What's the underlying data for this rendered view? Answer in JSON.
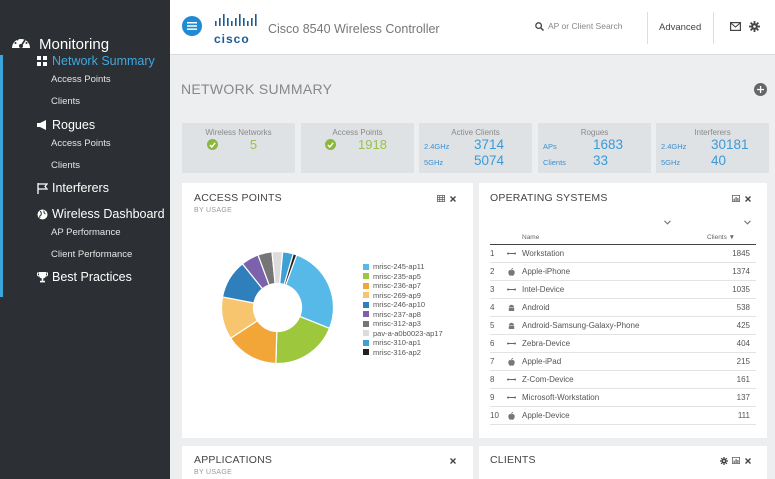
{
  "sidebar": {
    "monitoring": "Monitoring",
    "network_summary": "Network Summary",
    "access_points": "Access Points",
    "clients": "Clients",
    "rogues": "Rogues",
    "rogue_access_points": "Access Points",
    "rogue_clients": "Clients",
    "interferers": "Interferers",
    "wireless_dashboard": "Wireless Dashboard",
    "ap_performance": "AP Performance",
    "client_performance": "Client Performance",
    "best_practices": "Best Practices"
  },
  "header": {
    "brand": "cisco",
    "title": "Cisco 8540 Wireless Controller",
    "search_placeholder": "AP or Client Search",
    "advanced": "Advanced"
  },
  "page": {
    "title": "NETWORK SUMMARY"
  },
  "stats": {
    "wireless_networks": {
      "title": "Wireless Networks",
      "value": "5"
    },
    "access_points": {
      "title": "Access Points",
      "value": "1918"
    },
    "active_clients": {
      "title": "Active Clients",
      "k1": "2.4GHz",
      "v1": "3714",
      "k2": "5GHz",
      "v2": "5074"
    },
    "rogues": {
      "title": "Rogues",
      "k1": "APs",
      "v1": "1683",
      "k2": "Clients",
      "v2": "33"
    },
    "interferers": {
      "title": "Interferers",
      "k1": "2.4GHz",
      "v1": "30181",
      "k2": "5GHz",
      "v2": "40"
    }
  },
  "access_points_panel": {
    "title": "ACCESS POINTS",
    "subtitle": "BY USAGE"
  },
  "chart_data": {
    "type": "pie",
    "variant": "donut",
    "labels": [
      "mrisc-245-ap11",
      "mrisc-235-ap5",
      "mrisc-236-ap7",
      "mrisc-269-ap9",
      "mrisc-246-ap10",
      "mrisc-237-ap8",
      "mrisc-312-ap3",
      "pav-a-a0b0023-ap17",
      "mrisc-310-ap1",
      "mrisc-316-ap2"
    ],
    "values": [
      25,
      19,
      15,
      12,
      11,
      5,
      4,
      3,
      3,
      1
    ],
    "colors": [
      "#56b9e8",
      "#9dc83e",
      "#f2a637",
      "#f6c56e",
      "#2f7fbc",
      "#7c61ad",
      "#767676",
      "#dcdcdc",
      "#3fa0d6",
      "#222222"
    ],
    "legend": "right"
  },
  "os_panel": {
    "title": "OPERATING SYSTEMS",
    "col_name": "Name",
    "col_clients": "Clients ▼",
    "rows": [
      {
        "n": "1",
        "icon": "generic-device-icon",
        "name": "Workstation",
        "count": "1845"
      },
      {
        "n": "2",
        "icon": "apple-icon",
        "name": "Apple-iPhone",
        "count": "1374"
      },
      {
        "n": "3",
        "icon": "generic-device-icon",
        "name": "Intel-Device",
        "count": "1035"
      },
      {
        "n": "4",
        "icon": "android-icon",
        "name": "Android",
        "count": "538"
      },
      {
        "n": "5",
        "icon": "android-icon",
        "name": "Android-Samsung-Galaxy-Phone",
        "count": "425"
      },
      {
        "n": "6",
        "icon": "generic-device-icon",
        "name": "Zebra-Device",
        "count": "404"
      },
      {
        "n": "7",
        "icon": "apple-icon",
        "name": "Apple-iPad",
        "count": "215"
      },
      {
        "n": "8",
        "icon": "generic-device-icon",
        "name": "Z-Com-Device",
        "count": "161"
      },
      {
        "n": "9",
        "icon": "generic-device-icon",
        "name": "Microsoft-Workstation",
        "count": "137"
      },
      {
        "n": "10",
        "icon": "apple-icon",
        "name": "Apple-Device",
        "count": "111"
      }
    ]
  },
  "applications_panel": {
    "title": "APPLICATIONS",
    "subtitle": "BY USAGE"
  },
  "clients_panel": {
    "title": "CLIENTS"
  }
}
